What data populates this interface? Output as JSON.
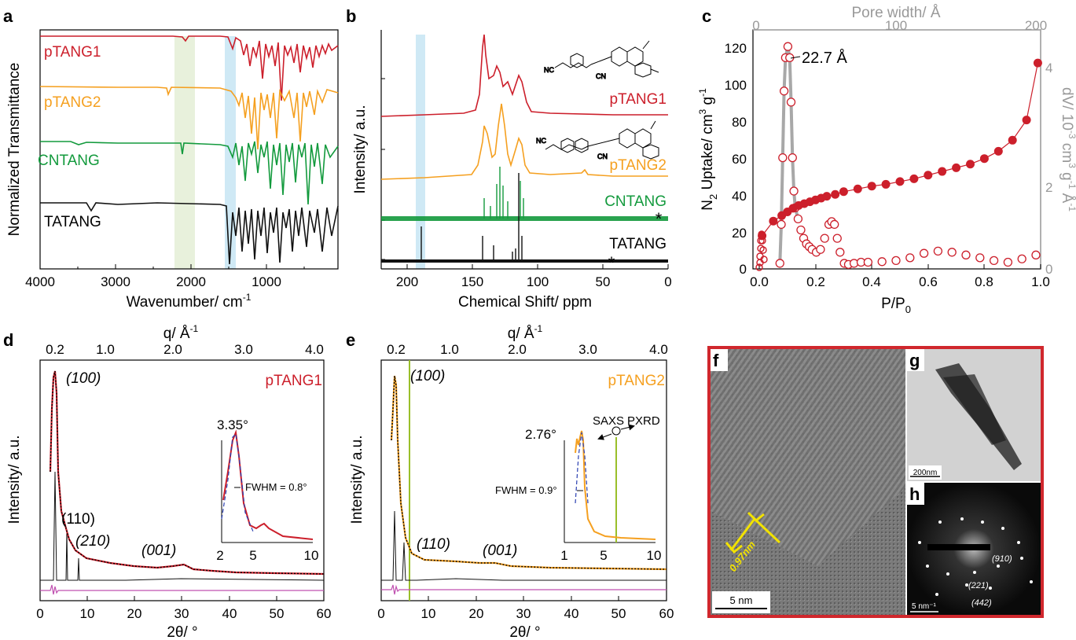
{
  "colors": {
    "red": "#cc1f2b",
    "orange": "#f5a020",
    "green": "#139a3d",
    "black": "#111111",
    "magenta": "#c050b0",
    "gray": "#a8a8a8",
    "frame": "#d0272d",
    "yellow": "#f2e200",
    "olive": "#9abf2a"
  },
  "panels": {
    "a": {
      "letter": "a",
      "xlabel": "Wavenumber/ cm",
      "xlabel_sup": "-1",
      "ylabel": "Normalized Transmittance",
      "xticks": [
        "4000",
        "3000",
        "2000",
        "1000"
      ],
      "series": [
        {
          "name": "pTANG1",
          "color": "red"
        },
        {
          "name": "pTANG2",
          "color": "orange"
        },
        {
          "name": "CNTANG",
          "color": "green"
        },
        {
          "name": "TATANG",
          "color": "black"
        }
      ]
    },
    "b": {
      "letter": "b",
      "xlabel": "Chemical Shift/ ppm",
      "ylabel": "Intensity/ a.u.",
      "xticks": [
        "200",
        "150",
        "100",
        "50",
        "0"
      ],
      "series": [
        {
          "name": "pTANG1"
        },
        {
          "name": "pTANG2"
        },
        {
          "name": "CNTANG"
        },
        {
          "name": "TATANG"
        }
      ],
      "star": "*",
      "struct_nc": "NC",
      "struct_cn": "CN"
    },
    "c": {
      "letter": "c",
      "xlabel": "P/P",
      "xlabel_sub": "0",
      "ylabel": "N",
      "ylabel_sub": "2",
      "ylabel_rest": " Uptake/ cm",
      "ylabel_sup": "3",
      "ylabel_end": " g",
      "ylabel_sup2": "-1",
      "top_label": "Pore width/ Å",
      "right_label": "dV/ 10",
      "right_sup1": "-3",
      "right_mid": " cm",
      "right_sup2": "3",
      "right_mid2": " g",
      "right_sup3": "-1",
      "right_mid3": " Å",
      "right_sup4": "-1",
      "xticks": [
        "0.0",
        "0.2",
        "0.4",
        "0.6",
        "0.8",
        "1.0"
      ],
      "yticks": [
        "0",
        "20",
        "40",
        "60",
        "80",
        "100",
        "120"
      ],
      "topticks": [
        "0",
        "100",
        "200"
      ],
      "rightticks": [
        "0",
        "2",
        "4"
      ],
      "annotation": "22.7 Å"
    },
    "d": {
      "letter": "d",
      "xlabel": "2θ/ °",
      "top_label": "q/ Å",
      "top_sup": "-1",
      "ylabel": "Intensity/ a.u.",
      "xticks": [
        "0",
        "10",
        "20",
        "30",
        "40",
        "50",
        "60"
      ],
      "topticks": [
        "0.2",
        "1.0",
        "2.0",
        "3.0",
        "4.0"
      ],
      "series_label": "pTANG1",
      "peaks": [
        "(100)",
        "(110)",
        "(210)",
        "(001)"
      ],
      "inset_peak": "3.35°",
      "fwhm": "FWHM = 0.8°",
      "inset_ticks": [
        "2",
        "5",
        "10"
      ]
    },
    "e": {
      "letter": "e",
      "xlabel": "2θ/ °",
      "top_label": "q/ Å",
      "top_sup": "-1",
      "ylabel": "Intensity/ a.u.",
      "xticks": [
        "0",
        "10",
        "20",
        "30",
        "40",
        "50",
        "60"
      ],
      "topticks": [
        "0.2",
        "1.0",
        "2.0",
        "3.0",
        "4.0"
      ],
      "series_label": "pTANG2",
      "peaks": [
        "(100)",
        "(110)",
        "(001)"
      ],
      "inset_peak": "2.76°",
      "fwhm": "FWHM = 0.9°",
      "saxs": "SAXS",
      "pxrd": "PXRD",
      "inset_ticks": [
        "1",
        "5",
        "10"
      ]
    },
    "f": {
      "letter": "f",
      "scale": "5 nm",
      "d_spacing": "0.97nm"
    },
    "g": {
      "letter": "g",
      "scale": "200nm"
    },
    "h": {
      "letter": "h",
      "scale": "5 nm⁻¹",
      "spots": [
        "(910)",
        "(221)",
        "(442)"
      ]
    }
  },
  "chart_data": [
    {
      "type": "line",
      "title": "",
      "panel": "c",
      "xlabel": "P/P0",
      "ylabel": "N2 Uptake/ cm3 g-1",
      "xlim": [
        0,
        1
      ],
      "ylim": [
        0,
        130
      ],
      "series": [
        {
          "name": "",
          "values_xy": [
            [
              0.01,
              18
            ],
            [
              0.05,
              26
            ],
            [
              0.08,
              29
            ],
            [
              0.1,
              31
            ],
            [
              0.12,
              33
            ],
            [
              0.14,
              34.5
            ],
            [
              0.16,
              35.5
            ],
            [
              0.18,
              36.5
            ],
            [
              0.2,
              37.5
            ],
            [
              0.22,
              38.5
            ],
            [
              0.24,
              39.5
            ],
            [
              0.27,
              40.5
            ],
            [
              0.3,
              42
            ],
            [
              0.35,
              43.5
            ],
            [
              0.4,
              45
            ],
            [
              0.45,
              46
            ],
            [
              0.5,
              47.5
            ],
            [
              0.55,
              49
            ],
            [
              0.6,
              51
            ],
            [
              0.65,
              53
            ],
            [
              0.7,
              55
            ],
            [
              0.75,
              57
            ],
            [
              0.8,
              60
            ],
            [
              0.85,
              64
            ],
            [
              0.9,
              70
            ],
            [
              0.95,
              81
            ],
            [
              0.99,
              112
            ]
          ]
        }
      ]
    },
    {
      "type": "line",
      "title": "",
      "panel": "c-psd",
      "xlabel": "Pore width/ Å",
      "ylabel": "dV",
      "xlim": [
        0,
        200
      ],
      "ylim": [
        0,
        4.3
      ],
      "series": [
        {
          "name": "",
          "values_xy": [
            [
              17,
              0.1
            ],
            [
              18,
              0.8
            ],
            [
              19,
              2.0
            ],
            [
              20,
              3.2
            ],
            [
              21,
              3.8
            ],
            [
              22.7,
              4.0
            ],
            [
              24,
              3.8
            ],
            [
              25,
              3.0
            ],
            [
              26,
              2.0
            ],
            [
              27,
              1.4
            ],
            [
              28,
              1.1
            ],
            [
              30,
              0.9
            ],
            [
              32,
              0.7
            ],
            [
              34,
              0.55
            ],
            [
              36,
              0.45
            ],
            [
              38,
              0.4
            ],
            [
              40,
              0.35
            ],
            [
              43,
              0.3
            ],
            [
              46,
              0.35
            ],
            [
              49,
              0.55
            ],
            [
              52,
              0.8
            ],
            [
              54,
              0.85
            ],
            [
              56,
              0.8
            ],
            [
              58,
              0.55
            ],
            [
              60,
              0.3
            ],
            [
              63,
              0.1
            ],
            [
              66,
              0.08
            ],
            [
              70,
              0.1
            ],
            [
              75,
              0.12
            ],
            [
              80,
              0.12
            ],
            [
              90,
              0.13
            ],
            [
              100,
              0.15
            ],
            [
              110,
              0.2
            ],
            [
              120,
              0.28
            ],
            [
              130,
              0.32
            ],
            [
              140,
              0.3
            ],
            [
              150,
              0.25
            ],
            [
              160,
              0.2
            ],
            [
              170,
              0.15
            ],
            [
              180,
              0.12
            ],
            [
              190,
              0.18
            ],
            [
              200,
              0.25
            ]
          ]
        }
      ]
    }
  ]
}
